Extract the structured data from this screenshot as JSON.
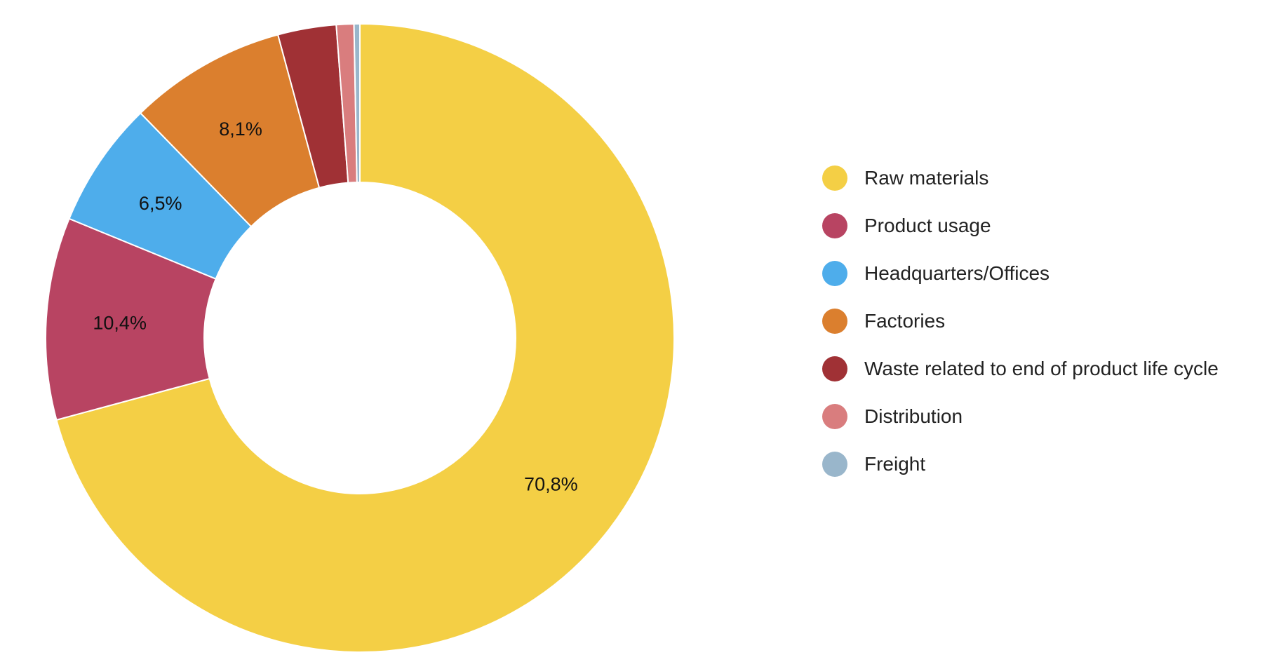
{
  "chart_data": {
    "type": "pie",
    "variant": "donut",
    "title": "",
    "legend_position": "right",
    "slices": [
      {
        "name": "Raw materials",
        "value": 70.8,
        "label": "70,8%",
        "color": "#F4CF45"
      },
      {
        "name": "Product usage",
        "value": 10.4,
        "label": "10,4%",
        "color": "#B84462"
      },
      {
        "name": "Headquarters/Offices",
        "value": 6.5,
        "label": "6,5%",
        "color": "#4EADEB"
      },
      {
        "name": "Factories",
        "value": 8.1,
        "label": "8,1%",
        "color": "#DB7F2E"
      },
      {
        "name": "Waste related to end of product life cycle",
        "value": 3.0,
        "label": "",
        "color": "#A03135"
      },
      {
        "name": "Distribution",
        "value": 0.9,
        "label": "",
        "color": "#D97D7E"
      },
      {
        "name": "Freight",
        "value": 0.3,
        "label": "",
        "color": "#99B6CB"
      }
    ]
  }
}
